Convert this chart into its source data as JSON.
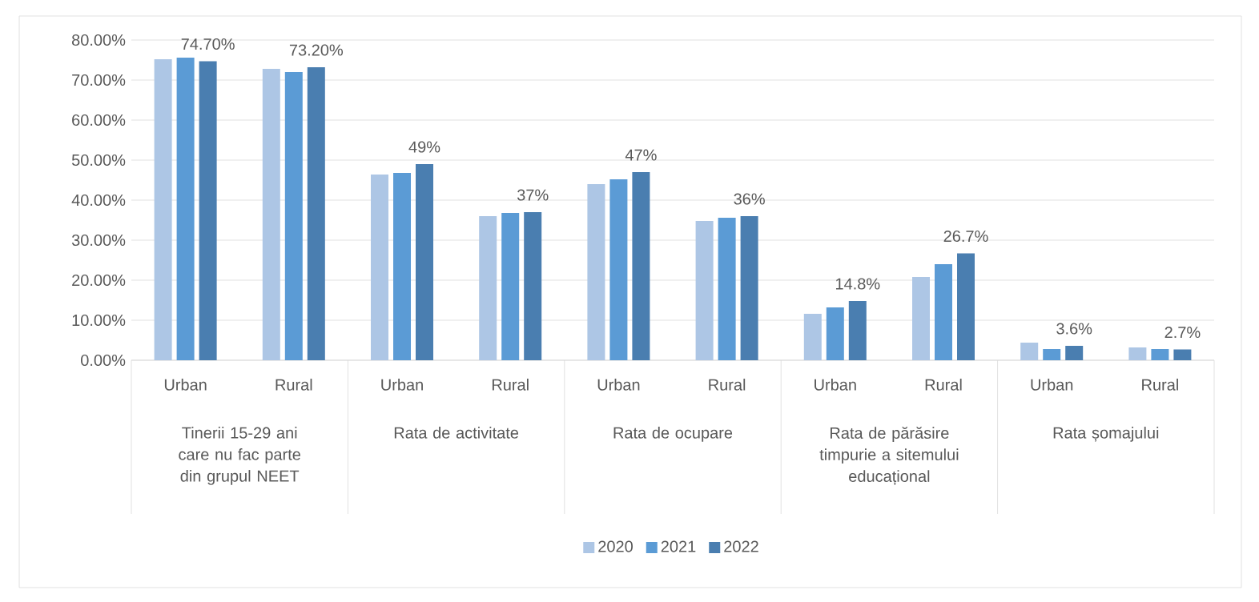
{
  "chart_data": {
    "type": "bar",
    "categories": [
      "Urban",
      "Rural",
      "Urban",
      "Rural",
      "Urban",
      "Rural",
      "Urban",
      "Rural",
      "Urban",
      "Rural"
    ],
    "annotations": [
      "Tinerii 15-29 ani care nu fac parte din grupul NEET",
      "Rata de activitate",
      "Rata de ocupare",
      "Rata de părăsire timpurie a sitemului educațional",
      "Rata șomajului"
    ],
    "series": [
      {
        "name": "2020",
        "color": "#adc6e5",
        "values": [
          75.2,
          72.8,
          46.4,
          36.0,
          44.0,
          34.8,
          11.6,
          20.8,
          4.4,
          3.2
        ]
      },
      {
        "name": "2021",
        "color": "#5b9bd5",
        "values": [
          75.6,
          72.0,
          46.8,
          36.8,
          45.2,
          35.6,
          13.2,
          24.0,
          2.8,
          2.8
        ]
      },
      {
        "name": "2022",
        "color": "#4a7eb0",
        "values": [
          74.7,
          73.2,
          49,
          37,
          47,
          36,
          14.8,
          26.7,
          3.6,
          2.7
        ],
        "value_labels": [
          "74.70%",
          "73.20%",
          "49%",
          "37%",
          "47%",
          "36%",
          "14.8%",
          "26.7%",
          "3.6%",
          "2.7%"
        ]
      }
    ],
    "ylim": [
      0,
      80
    ],
    "yticks": [
      {
        "value": 0,
        "label": "0.00%"
      },
      {
        "value": 10,
        "label": "10.00%"
      },
      {
        "value": 20,
        "label": "20.00%"
      },
      {
        "value": 30,
        "label": "30.00%"
      },
      {
        "value": 40,
        "label": "40.00%"
      },
      {
        "value": 50,
        "label": "50.00%"
      },
      {
        "value": 60,
        "label": "60.00%"
      },
      {
        "value": 70,
        "label": "70.00%"
      },
      {
        "value": 80,
        "label": "80.00%"
      }
    ],
    "grid": "y",
    "legend": "bottom"
  }
}
